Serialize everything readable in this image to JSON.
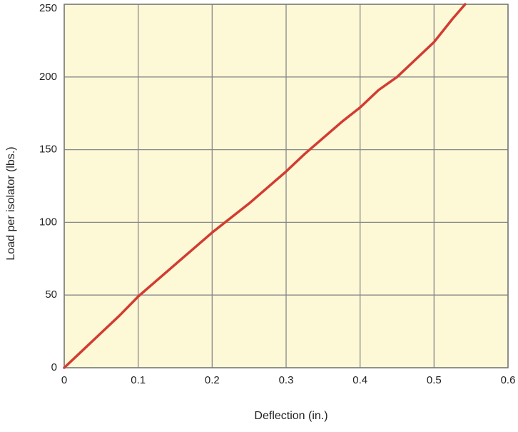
{
  "chart_data": {
    "type": "line",
    "x_label": "Deflection (in.)",
    "y_label": "Load per isolator (lbs.)",
    "x": [
      0,
      0.025,
      0.05,
      0.075,
      0.1,
      0.125,
      0.15,
      0.175,
      0.2,
      0.225,
      0.25,
      0.275,
      0.3,
      0.325,
      0.35,
      0.375,
      0.4,
      0.425,
      0.45,
      0.475,
      0.5,
      0.525,
      0.542
    ],
    "values": [
      0,
      12,
      24,
      36,
      49,
      60,
      71,
      82,
      93,
      103,
      113,
      124,
      135,
      147,
      158,
      169,
      179,
      191,
      200,
      212,
      224,
      240,
      250
    ],
    "color": "#d23c32",
    "xlim": [
      0,
      0.6
    ],
    "ylim": [
      0,
      250
    ],
    "xticks": [
      0,
      0.1,
      0.2,
      0.3,
      0.4,
      0.5,
      0.6
    ],
    "yticks": [
      0,
      50,
      100,
      150,
      200,
      250
    ],
    "grid": true,
    "plot_background": "#fdf8d6"
  }
}
